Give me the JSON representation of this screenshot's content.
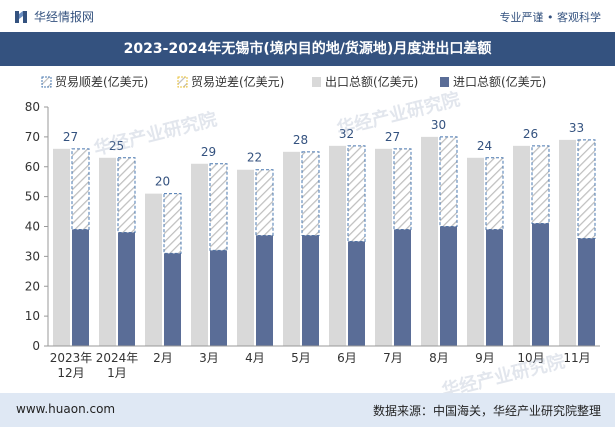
{
  "header": {
    "brand": "华经情报网",
    "tags": "专业严谨 • 客观科学",
    "title": "2023-2024年无锡市(境内目的地/货源地)月度进出口差额"
  },
  "footer": {
    "site": "www.huaon.com",
    "source": "数据来源：中国海关，华经产业研究院整理"
  },
  "watermarks": [
    "华经产业研究院",
    "华经产业研究院",
    "www.huaon.com"
  ],
  "colors": {
    "header_bg": "#34527f",
    "export_bar": "#d9d9d9",
    "import_bar": "#5a6d97",
    "surplus_border": "#4a78b0",
    "hatch": "#bfbfbf",
    "value_label": "#34527f",
    "footer_bg": "#dfe8f4"
  },
  "chart_data": {
    "type": "bar",
    "categories": [
      "2023年\n12月",
      "2024年\n1月",
      "2月",
      "3月",
      "4月",
      "5月",
      "6月",
      "7月",
      "8月",
      "9月",
      "10月",
      "11月"
    ],
    "series": [
      {
        "name": "贸易顺差(亿美元)",
        "values": [
          27,
          25,
          20,
          29,
          22,
          28,
          32,
          27,
          30,
          24,
          26,
          33
        ]
      },
      {
        "name": "贸易逆差(亿美元)",
        "values": [
          0,
          0,
          0,
          0,
          0,
          0,
          0,
          0,
          0,
          0,
          0,
          0
        ]
      },
      {
        "name": "出口总额(亿美元)",
        "values": [
          66,
          63,
          51,
          61,
          59,
          65,
          67,
          66,
          70,
          63,
          67,
          69
        ]
      },
      {
        "name": "进口总额(亿美元)",
        "values": [
          39,
          38,
          31,
          32,
          37,
          37,
          35,
          39,
          40,
          39,
          41,
          36
        ]
      }
    ],
    "ylim": [
      0,
      80
    ],
    "yticks": [
      0,
      10,
      20,
      30,
      40,
      50,
      60,
      70,
      80
    ],
    "legend_position": "top",
    "grid": false
  }
}
